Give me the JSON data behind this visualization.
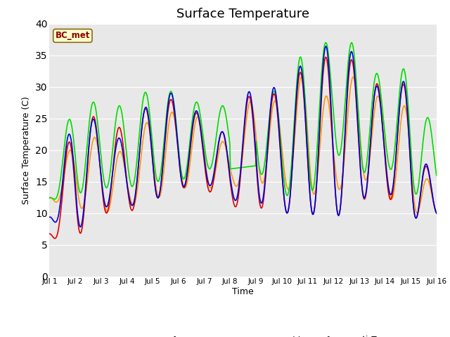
{
  "title": "Surface Temperature",
  "ylabel": "Surface Temperature (C)",
  "xlabel": "Time",
  "annotation": "BC_met",
  "ylim": [
    0,
    40
  ],
  "xlim": [
    0,
    360
  ],
  "background_color": "#e8e8e8",
  "series": {
    "NR01_Tsurf": {
      "color": "#dd0000",
      "lw": 1.2
    },
    "NR01_PRT": {
      "color": "#0000dd",
      "lw": 1.2
    },
    "Arable_Tsurf": {
      "color": "#00dd00",
      "lw": 1.2
    },
    "AirT": {
      "color": "#ff9900",
      "lw": 1.2
    }
  },
  "xtick_positions": [
    0,
    24,
    48,
    72,
    96,
    120,
    144,
    168,
    192,
    216,
    240,
    264,
    288,
    312,
    336,
    360
  ],
  "xtick_labels": [
    "Jul 1",
    "Jul 2",
    "Jul 3",
    "Jul 4",
    "Jul 5",
    "Jul 6",
    "Jul 7",
    "Jul 8",
    "Jul 9",
    "Jul 10",
    "Jul 11",
    "Jul 12",
    "Jul 13",
    "Jul 14",
    "Jul 15",
    "Jul 16"
  ],
  "ytick_positions": [
    0,
    5,
    10,
    15,
    20,
    25,
    30,
    35,
    40
  ],
  "figsize": [
    6.4,
    4.8
  ],
  "dpi": 100
}
